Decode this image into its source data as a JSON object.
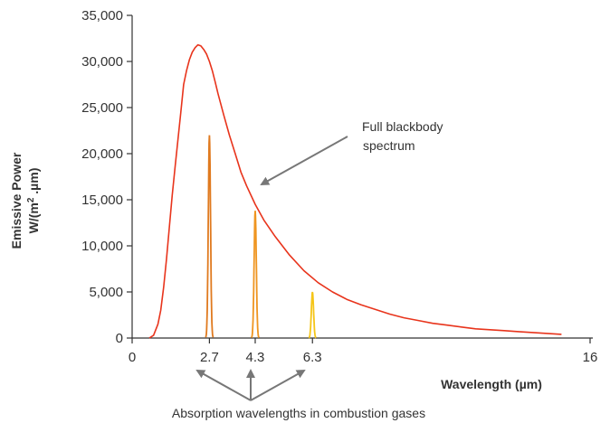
{
  "chart_data": {
    "type": "line",
    "title": "",
    "xlabel": "Wavelength (µm)",
    "ylabel_line1": "Emissive Power",
    "ylabel_line2_prefix": "W/(m",
    "ylabel_line2_sup": "2",
    "ylabel_line2_suffix": " .µm)",
    "xlim": [
      0,
      16
    ],
    "ylim": [
      0,
      35000
    ],
    "x_ticks": [
      {
        "value": 0,
        "label": "0"
      },
      {
        "value": 2.7,
        "label": "2.7"
      },
      {
        "value": 4.3,
        "label": "4.3"
      },
      {
        "value": 6.3,
        "label": "6.3"
      },
      {
        "value": 16,
        "label": "16"
      }
    ],
    "y_ticks": [
      {
        "value": 0,
        "label": "0"
      },
      {
        "value": 5000,
        "label": "5,000"
      },
      {
        "value": 10000,
        "label": "10,000"
      },
      {
        "value": 15000,
        "label": "15,000"
      },
      {
        "value": 20000,
        "label": "20,000"
      },
      {
        "value": 25000,
        "label": "25,000"
      },
      {
        "value": 30000,
        "label": "30,000"
      },
      {
        "value": 35000,
        "label": "35,000"
      }
    ],
    "grid": false,
    "series": [
      {
        "color": "#e8341c",
        "x": [
          0.6,
          0.75,
          0.9,
          1.0,
          1.1,
          1.2,
          1.3,
          1.4,
          1.5,
          1.6,
          1.7,
          1.8,
          1.9,
          2.0,
          2.1,
          2.2,
          2.3,
          2.4,
          2.5,
          2.6,
          2.7,
          2.8,
          2.9,
          3.0,
          3.2,
          3.4,
          3.6,
          3.8,
          4.0,
          4.3,
          4.6,
          5.0,
          5.5,
          6.0,
          6.5,
          7.0,
          7.5,
          8.0,
          8.5,
          9.0,
          9.5,
          10.0,
          10.5,
          11.0,
          11.5,
          12.0,
          12.5,
          13.0,
          13.5,
          14.0,
          14.5,
          15.0
        ],
        "values": [
          0,
          300,
          1500,
          3000,
          5500,
          8500,
          12000,
          15500,
          18500,
          21500,
          24500,
          27500,
          29000,
          30200,
          31000,
          31500,
          31800,
          31700,
          31300,
          30800,
          30000,
          29000,
          27800,
          26500,
          24200,
          22000,
          20000,
          18000,
          16500,
          14500,
          12800,
          11000,
          9000,
          7300,
          6000,
          5000,
          4200,
          3600,
          3100,
          2600,
          2200,
          1900,
          1600,
          1400,
          1200,
          1000,
          900,
          800,
          700,
          600,
          500,
          400
        ]
      }
    ],
    "absorption_peaks": [
      {
        "center": 2.7,
        "height": 22000,
        "halfwidth": 0.13,
        "color": "#e07a1f"
      },
      {
        "center": 4.3,
        "height": 13800,
        "halfwidth": 0.13,
        "color": "#ef9520"
      },
      {
        "center": 6.3,
        "height": 5000,
        "halfwidth": 0.13,
        "color": "#f5c518"
      }
    ],
    "annotations": {
      "blackbody_line1": "Full blackbody",
      "blackbody_line2": "spectrum",
      "absorption_caption": "Absorption wavelengths in combustion gases"
    },
    "colors": {
      "axis": "#333333",
      "arrow": "#777777"
    }
  }
}
